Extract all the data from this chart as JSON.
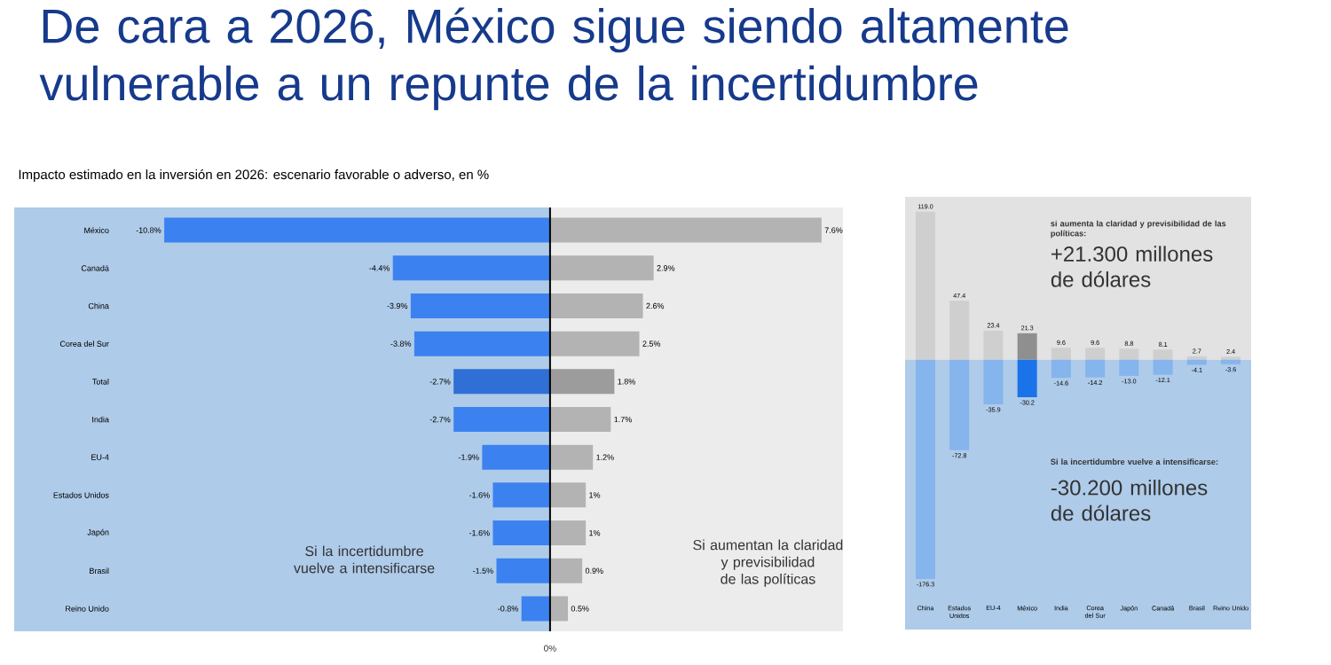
{
  "chart_data": [
    {
      "type": "bar",
      "orientation": "horizontal",
      "title": "De cara a 2026, México sigue siendo altamente vulnerable a un repunte de la incertidumbre",
      "subtitle": "Impacto estimado en la inversión en 2026: escenario favorable o adverso, en %",
      "categories": [
        "México",
        "Canadá",
        "China",
        "Corea del Sur",
        "Total",
        "India",
        "EU-4",
        "Estados Unidos",
        "Japón",
        "Brasil",
        "Reino Unido"
      ],
      "series": [
        {
          "colors": [
            "#3b82f0",
            "#3b82f0",
            "#3b82f0",
            "#3b82f0",
            "#2f6fd6",
            "#3b82f0",
            "#3b82f0",
            "#3b82f0",
            "#3b82f0",
            "#3b82f0",
            "#3b82f0"
          ],
          "values": [
            -10.8,
            -4.4,
            -3.9,
            -3.8,
            -2.7,
            -2.7,
            -1.9,
            -1.6,
            -1.6,
            -1.5,
            -0.8
          ],
          "value_labels": [
            "-10.8%",
            "-4.4%",
            "-3.9%",
            "-3.8%",
            "-2.7%",
            "-2.7%",
            "-1.9%",
            "-1.6%",
            "-1.6%",
            "-1.5%",
            "-0.8%"
          ]
        },
        {
          "colors": [
            "#b3b3b3",
            "#b3b3b3",
            "#b3b3b3",
            "#b3b3b3",
            "#9c9c9c",
            "#b3b3b3",
            "#b3b3b3",
            "#b3b3b3",
            "#b3b3b3",
            "#b3b3b3",
            "#b3b3b3"
          ],
          "values": [
            7.6,
            2.9,
            2.6,
            2.5,
            1.8,
            1.7,
            1.2,
            1,
            1,
            0.9,
            0.5
          ],
          "value_labels": [
            "7.6%",
            "2.9%",
            "2.6%",
            "2.5%",
            "1.8%",
            "1.7%",
            "1.2%",
            "1%",
            "1%",
            "0.9%",
            "0.5%"
          ]
        }
      ],
      "xlim": [
        -15,
        8.2
      ],
      "stacked": true,
      "bands": [
        {
          "axis": "x",
          "from": -15,
          "to": 0,
          "color": "#aecbe9"
        },
        {
          "axis": "x",
          "from": 0,
          "to": 8.2,
          "color": "#ececec"
        }
      ],
      "ref_lines": [
        {
          "axis": "x",
          "value": 0,
          "color": "#000000"
        }
      ],
      "annotations": [
        "Si la incertidumbre vuelve a intensificarse",
        "Si aumentan la claridad y previsibilidad de las políticas",
        "0%"
      ]
    },
    {
      "type": "bar",
      "categories": [
        "China",
        "Estados Unidos",
        "EU-4",
        "México",
        "India",
        "Corea del Sur",
        "Japón",
        "Canadá",
        "Brasil",
        "Reino Unido"
      ],
      "series": [
        {
          "colors": [
            "#cfcfcf",
            "#cfcfcf",
            "#cfcfcf",
            "#8f8f8f",
            "#cfcfcf",
            "#cfcfcf",
            "#cfcfcf",
            "#cfcfcf",
            "#cfcfcf",
            "#cfcfcf"
          ],
          "values": [
            119.0,
            47.4,
            23.4,
            21.3,
            9.6,
            9.6,
            8.8,
            8.1,
            2.7,
            2.4
          ],
          "value_labels": [
            "119.0",
            "47.4",
            "23.4",
            "21.3",
            "9.6",
            "9.6",
            "8.8",
            "8.1",
            "2.7",
            "2.4"
          ]
        },
        {
          "colors": [
            "#86b4ec",
            "#86b4ec",
            "#86b4ec",
            "#1a73e8",
            "#86b4ec",
            "#86b4ec",
            "#86b4ec",
            "#86b4ec",
            "#86b4ec",
            "#86b4ec"
          ],
          "values": [
            -176.3,
            -72.8,
            -35.9,
            -30.2,
            -14.6,
            -14.2,
            -13.0,
            -12.1,
            -4.1,
            -3.6
          ],
          "value_labels": [
            "-176.3",
            "-72.8",
            "-35.9",
            "-30.2",
            "-14.6",
            "-14.2",
            "-13.0",
            "-12.1",
            "-4.1",
            "-3.6"
          ]
        }
      ],
      "ylim": [
        -217,
        131
      ],
      "tick_labels": "x",
      "stacked": true,
      "bands": [
        {
          "axis": "y",
          "from": 0,
          "to": 131,
          "color": "#e2e2e2"
        },
        {
          "axis": "y",
          "from": -217,
          "to": 0,
          "color": "#aecbe9"
        }
      ],
      "annotations": [
        "**si aumenta la claridad y previsibilidad de las políticas:**",
        "+21.300 millones de dólares",
        "**Si la incertidumbre vuelve a intensificarse:**",
        "-30.200 millones de dólares"
      ]
    }
  ]
}
